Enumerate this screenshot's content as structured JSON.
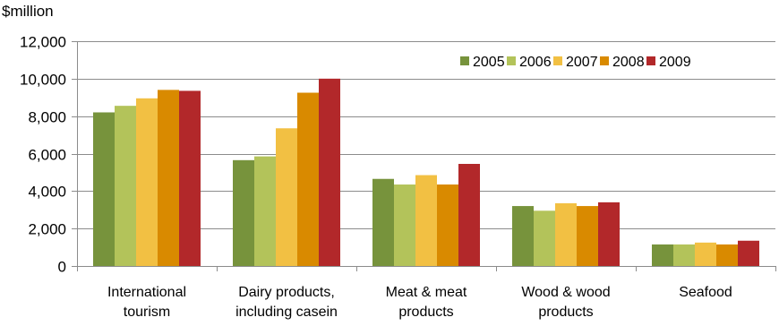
{
  "chart_data": {
    "type": "bar",
    "unit_label": "$million",
    "categories": [
      [
        "International",
        "tourism"
      ],
      [
        "Dairy products,",
        "including casein"
      ],
      [
        "Meat & meat",
        "products"
      ],
      [
        "Wood & wood",
        "products"
      ],
      [
        "Seafood"
      ]
    ],
    "series": [
      {
        "name": "2005",
        "color": "#77933c",
        "values": [
          8200,
          5650,
          4650,
          3200,
          1150
        ]
      },
      {
        "name": "2006",
        "color": "#b3c35a",
        "values": [
          8550,
          5850,
          4350,
          2950,
          1150
        ]
      },
      {
        "name": "2007",
        "color": "#f2c043",
        "values": [
          8950,
          7350,
          4850,
          3350,
          1250
        ]
      },
      {
        "name": "2008",
        "color": "#d98a00",
        "values": [
          9400,
          9250,
          4350,
          3200,
          1150
        ]
      },
      {
        "name": "2009",
        "color": "#b2282a",
        "values": [
          9350,
          10000,
          5450,
          3400,
          1350
        ]
      }
    ],
    "ylim": [
      0,
      12000
    ],
    "yticks": [
      0,
      2000,
      4000,
      6000,
      8000,
      10000,
      12000
    ],
    "ytick_labels": [
      "0",
      "2,000",
      "4,000",
      "6,000",
      "8,000",
      "10,000",
      "12,000"
    ],
    "grid": true,
    "legend_position": "top-right"
  }
}
